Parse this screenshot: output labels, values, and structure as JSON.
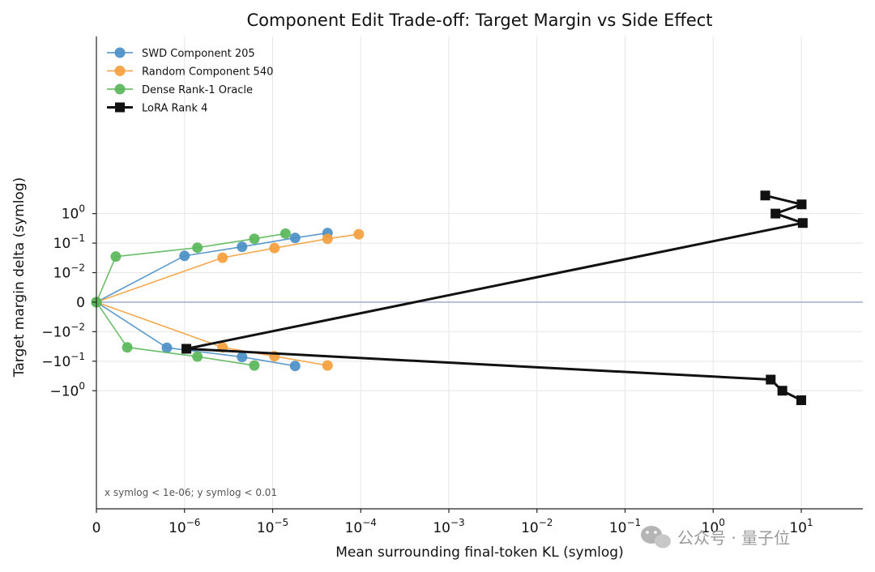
{
  "chart_data": {
    "type": "line",
    "title": "Component Edit Trade-off: Target Margin vs Side Effect",
    "xlabel": "Mean surrounding final-token KL (symlog)",
    "ylabel": "Target margin delta (symlog)",
    "xscale": {
      "type": "symlog",
      "linthresh": 1e-06
    },
    "yscale": {
      "type": "symlog",
      "linthresh": 0.01
    },
    "xlim": [
      0,
      50
    ],
    "ylim": [
      -7,
      9
    ],
    "grid": true,
    "legend_position": "top-left",
    "x_ticks": [
      {
        "value": 0,
        "base": "0",
        "exp": ""
      },
      {
        "value": 1e-06,
        "base": "10",
        "exp": "−6"
      },
      {
        "value": 1e-05,
        "base": "10",
        "exp": "−5"
      },
      {
        "value": 0.0001,
        "base": "10",
        "exp": "−4"
      },
      {
        "value": 0.001,
        "base": "10",
        "exp": "−3"
      },
      {
        "value": 0.01,
        "base": "10",
        "exp": "−2"
      },
      {
        "value": 0.1,
        "base": "10",
        "exp": "−1"
      },
      {
        "value": 1,
        "base": "10",
        "exp": "0"
      },
      {
        "value": 10,
        "base": "10",
        "exp": "1"
      }
    ],
    "y_ticks": [
      {
        "value": 1,
        "base": "10",
        "exp": "0"
      },
      {
        "value": 0.1,
        "base": "10",
        "exp": "−1"
      },
      {
        "value": 0.01,
        "base": "10",
        "exp": "−2"
      },
      {
        "value": 0,
        "base": "0",
        "exp": ""
      },
      {
        "value": -0.01,
        "base": "−10",
        "exp": "−2"
      },
      {
        "value": -0.1,
        "base": "−10",
        "exp": "−1"
      },
      {
        "value": -1,
        "base": "−10",
        "exp": "0"
      }
    ],
    "annotation": "x symlog < 1e-06; y symlog < 0.01",
    "series": [
      {
        "name": "SWD Component 205",
        "color": "#4a8fc7",
        "marker": "circle",
        "points": [
          {
            "x": 0,
            "y": 0
          },
          {
            "x": 1e-06,
            "y": 0.037
          },
          {
            "x": 4.5e-06,
            "y": 0.075
          },
          {
            "x": 1.8e-05,
            "y": 0.15
          },
          {
            "x": 4.2e-05,
            "y": 0.22
          }
        ]
      },
      {
        "name": "SWD Component 205",
        "color": "#4a8fc7",
        "marker": "circle",
        "points": [
          {
            "x": 0,
            "y": 0
          },
          {
            "x": 8e-07,
            "y": -0.035
          },
          {
            "x": 4.5e-06,
            "y": -0.072
          },
          {
            "x": 1.8e-05,
            "y": -0.145
          }
        ]
      },
      {
        "name": "Random Component 540",
        "color": "#f5a03d",
        "marker": "circle",
        "points": [
          {
            "x": 0,
            "y": 0
          },
          {
            "x": 2.7e-06,
            "y": 0.032
          },
          {
            "x": 1.05e-05,
            "y": 0.068
          },
          {
            "x": 4.2e-05,
            "y": 0.14
          },
          {
            "x": 9.5e-05,
            "y": 0.2
          }
        ]
      },
      {
        "name": "Random Component 540",
        "color": "#f5a03d",
        "marker": "circle",
        "points": [
          {
            "x": 0,
            "y": 0
          },
          {
            "x": 2.7e-06,
            "y": -0.034
          },
          {
            "x": 1.05e-05,
            "y": -0.068
          },
          {
            "x": 4.2e-05,
            "y": -0.14
          }
        ]
      },
      {
        "name": "Dense Rank-1 Oracle",
        "color": "#5ab75a",
        "marker": "circle",
        "points": [
          {
            "x": 0,
            "y": 0
          },
          {
            "x": 2.2e-07,
            "y": 0.035
          },
          {
            "x": 1.4e-06,
            "y": 0.07
          },
          {
            "x": 6.2e-06,
            "y": 0.14
          },
          {
            "x": 1.4e-05,
            "y": 0.21
          }
        ]
      },
      {
        "name": "Dense Rank-1 Oracle",
        "color": "#5ab75a",
        "marker": "circle",
        "points": [
          {
            "x": 0,
            "y": 0
          },
          {
            "x": 3.5e-07,
            "y": -0.034
          },
          {
            "x": 1.4e-06,
            "y": -0.07
          },
          {
            "x": 6.2e-06,
            "y": -0.14
          }
        ]
      },
      {
        "name": "LoRA Rank 4",
        "color": "#111111",
        "marker": "square",
        "points": [
          {
            "x": 3.9,
            "y": 4.1
          },
          {
            "x": 10.1,
            "y": 2.05
          },
          {
            "x": 5.1,
            "y": 1.0
          },
          {
            "x": 10.4,
            "y": 0.48
          },
          {
            "x": 1.05e-06,
            "y": -0.038
          },
          {
            "x": 4.5,
            "y": -0.42
          },
          {
            "x": 6.1,
            "y": -1.0
          },
          {
            "x": 10,
            "y": -2.1
          }
        ]
      }
    ],
    "legend": [
      {
        "label": "SWD Component 205",
        "color": "#4a8fc7",
        "marker": "circle"
      },
      {
        "label": "Random Component 540",
        "color": "#f5a03d",
        "marker": "circle"
      },
      {
        "label": "Dense Rank-1 Oracle",
        "color": "#5ab75a",
        "marker": "circle"
      },
      {
        "label": "LoRA Rank 4",
        "color": "#111111",
        "marker": "square"
      }
    ]
  },
  "watermark": {
    "text": "公众号 · 量子位",
    "icon": "wechat-icon"
  }
}
